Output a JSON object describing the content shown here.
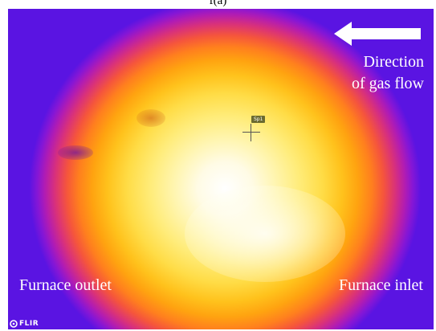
{
  "caption": "f(a)",
  "annotations": {
    "flow_line_1": "Direction",
    "flow_line_2": "of gas flow",
    "outlet_label": "Furnace outlet",
    "inlet_label": "Furnace inlet",
    "spot_marker": "Sp1"
  },
  "logo": {
    "text": "FLIR",
    "icon": "flir-logo-icon"
  },
  "arrow": {
    "icon": "arrow-left-icon",
    "color": "#ffffff"
  },
  "palette": {
    "hot_core": "#ffffff",
    "yellow": "#ffdc46",
    "orange": "#ffa310",
    "magenta": "#d9317a",
    "cool_edge": "#5a14e2"
  }
}
